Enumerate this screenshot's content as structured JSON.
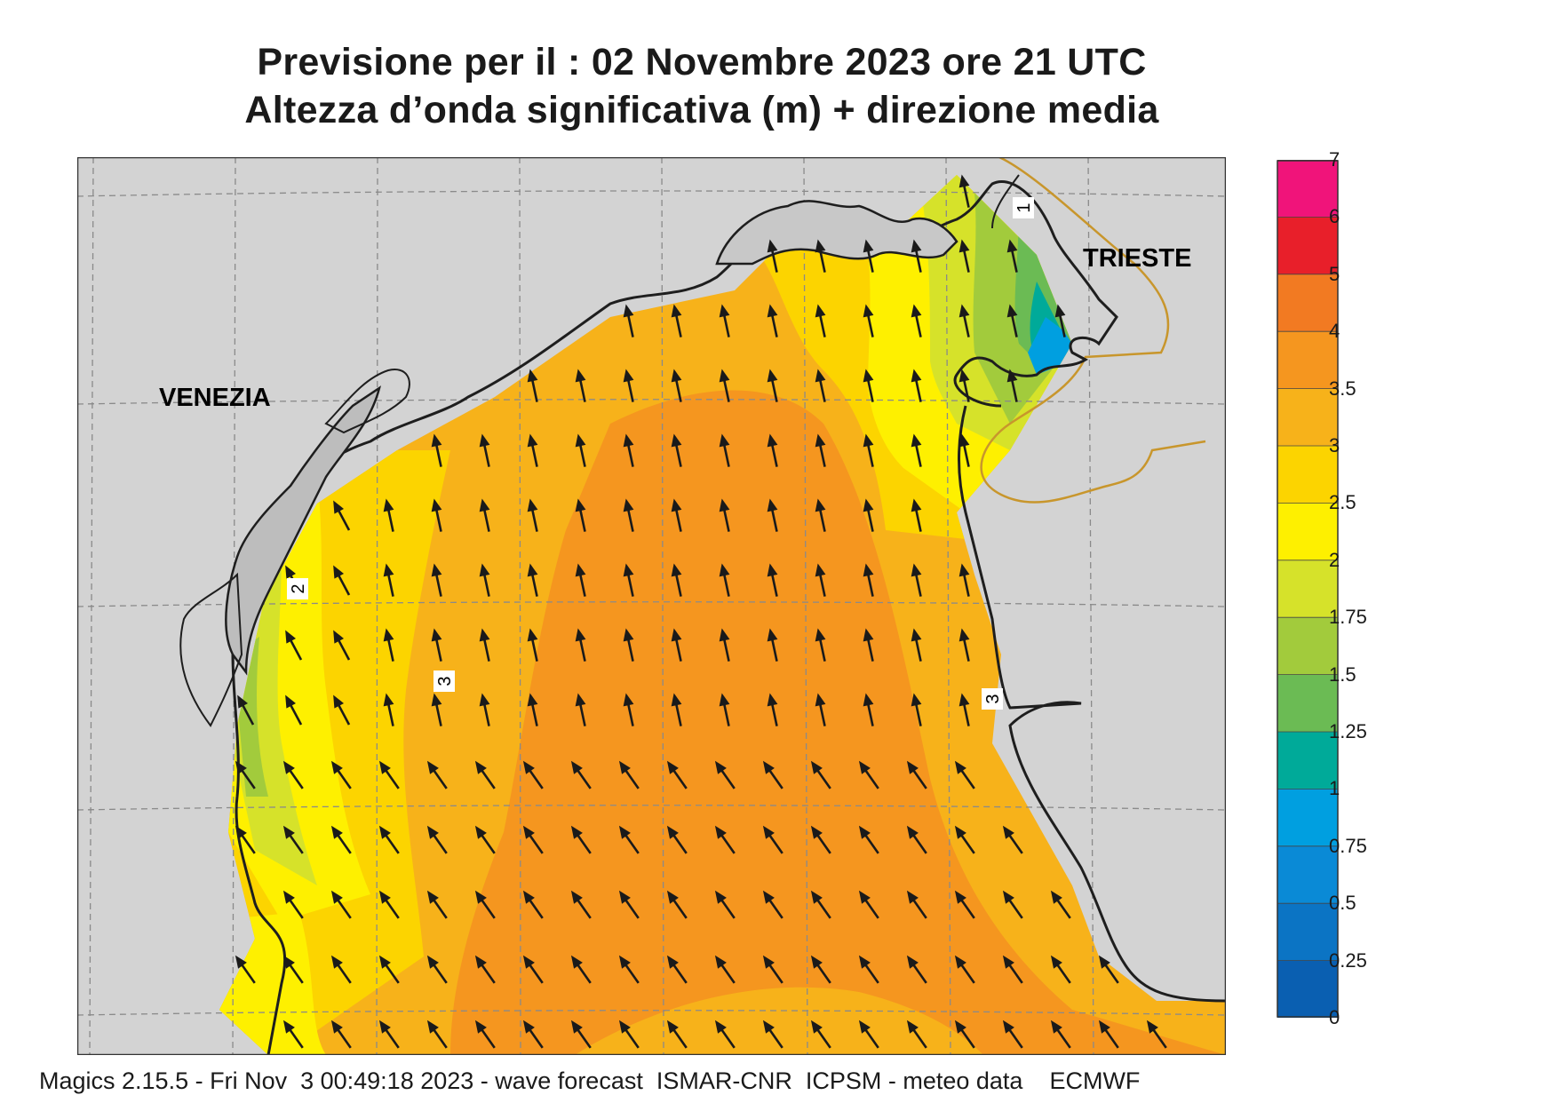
{
  "title": {
    "line1": "Previsione per il  :  02 Novembre  2023   ore 21 UTC",
    "line2": "Altezza d’onda significativa (m) + direzione media"
  },
  "map": {
    "cities": [
      "VENEZIA",
      "TRIESTE"
    ],
    "contour_labels": [
      "2",
      "3",
      "3",
      "1"
    ],
    "arrow_direction": "north-northwest",
    "colors": {
      "land": "#d3d3d3",
      "coast": "#1e1e1e",
      "border": "#c8962c",
      "grid": "#8a8a8a",
      "arrow": "#1a1a1a"
    }
  },
  "legend": {
    "labels": [
      "7",
      "6",
      "5",
      "4",
      "3.5",
      "3",
      "2.5",
      "2",
      "1.75",
      "1.5",
      "1.25",
      "1",
      "0.75",
      "0.5",
      "0.25",
      "0"
    ],
    "colors": [
      "#f0147a",
      "#e81f2a",
      "#f27a22",
      "#f5961f",
      "#f7b21a",
      "#fcd400",
      "#fef000",
      "#d6e22a",
      "#a2cb3c",
      "#6bbb54",
      "#00aa99",
      "#009fe0",
      "#0a8ad6",
      "#0b74c4",
      "#0a5fb1"
    ]
  },
  "footer": "Magics 2.15.5 - Fri Nov  3 00:49:18 2023 - wave forecast  ISMAR-CNR  ICPSM - meteo data    ECMWF"
}
